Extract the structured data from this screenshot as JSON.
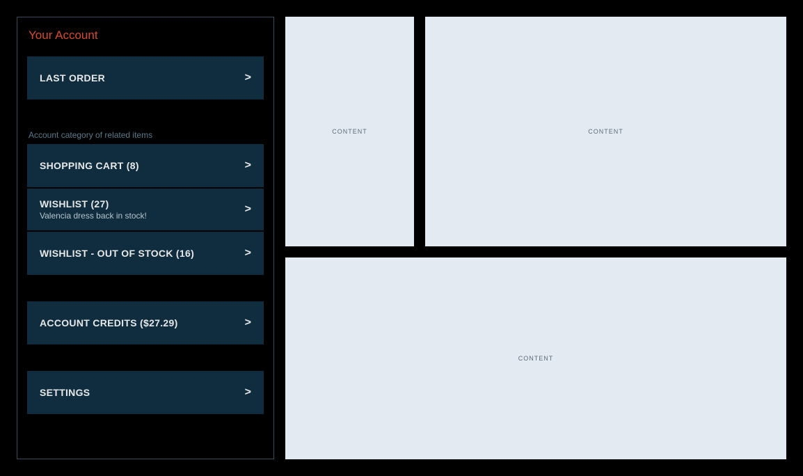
{
  "sidebar": {
    "title": "Your Account",
    "section_header": "Account category of related items",
    "items": {
      "last_order": {
        "label": "LAST ORDER",
        "chevron": ">"
      },
      "shopping_cart": {
        "label": "SHOPPING CART (8)",
        "chevron": ">"
      },
      "wishlist": {
        "label": "WISHLIST (27)",
        "subtitle": "Valencia dress back in stock!",
        "chevron": ">"
      },
      "wishlist_oos": {
        "label": "WISHLIST - OUT OF STOCK (16)",
        "chevron": ">"
      },
      "account_credits": {
        "label": "ACCOUNT CREDITS ($27.29)",
        "chevron": ">"
      },
      "settings": {
        "label": "SETTINGS",
        "chevron": ">"
      }
    }
  },
  "content": {
    "panel_label": "CONTENT"
  },
  "colors": {
    "background": "#000000",
    "sidebar_border": "#3a4a5a",
    "nav_item_bg": "#0f2d3f",
    "title_accent": "#d84a2b",
    "text_primary": "#e8e8e8",
    "text_secondary": "#b8c4cc",
    "text_muted": "#5a7a8a",
    "panel_bg": "#e4eaf2",
    "panel_text": "#5a6a7a"
  }
}
